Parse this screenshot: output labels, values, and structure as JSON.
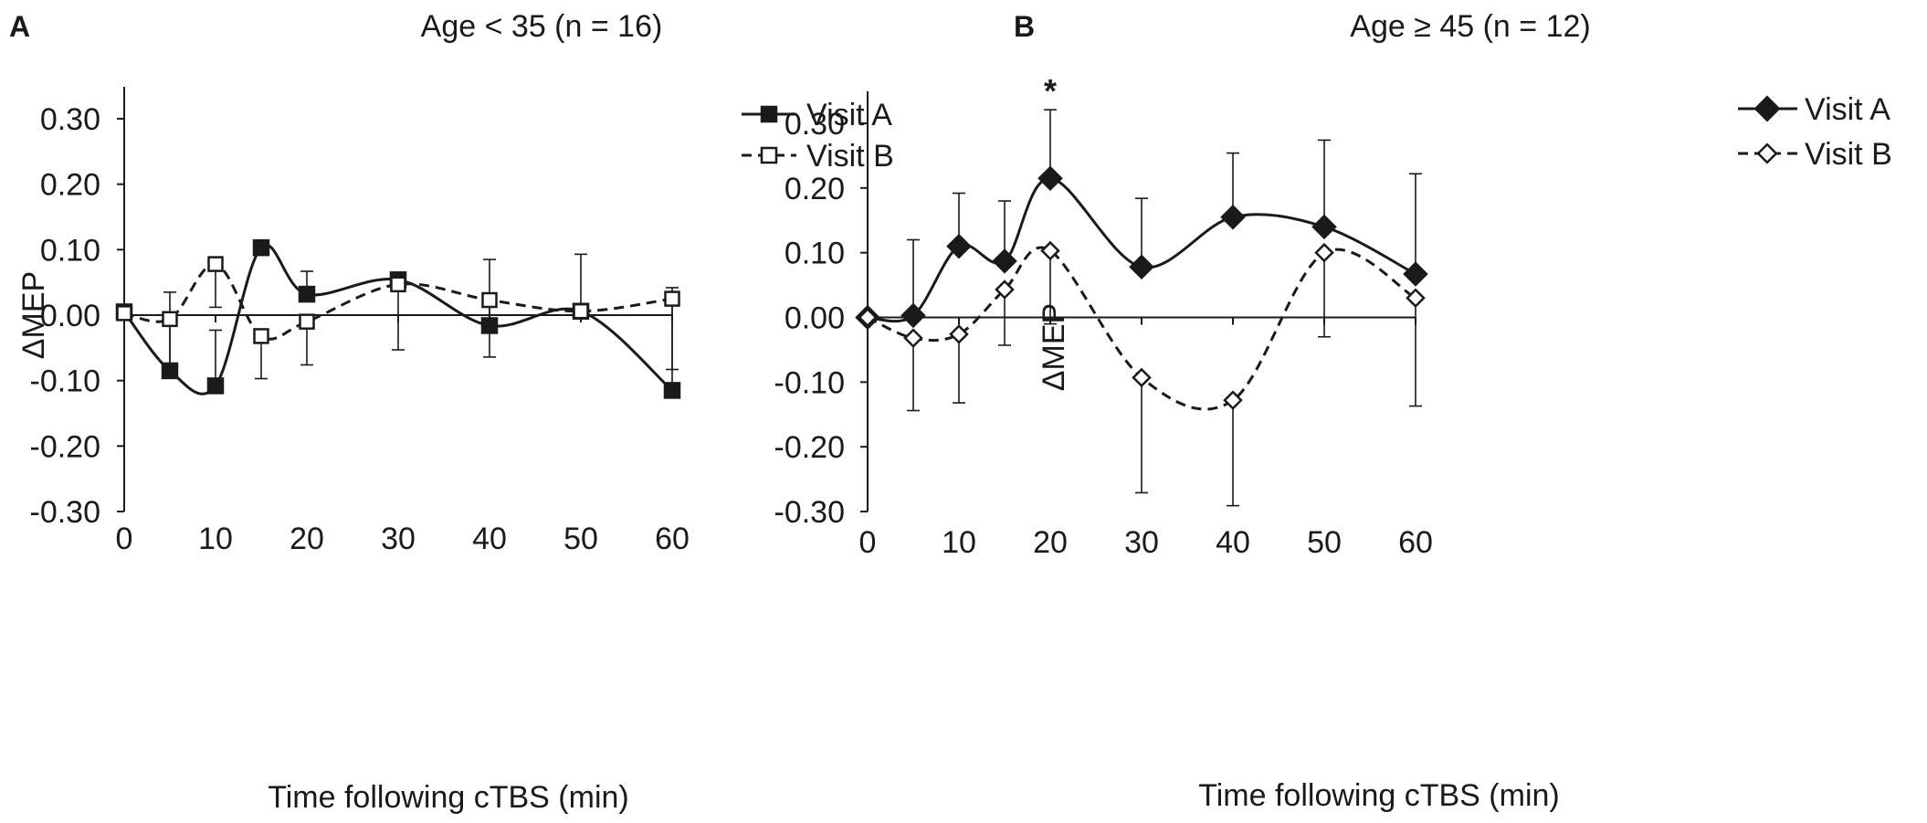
{
  "chart_data": [
    {
      "panel": "A",
      "type": "line",
      "title": "Age < 35 (n = 16)",
      "xlabel": "Time following cTBS (min)",
      "ylabel": "ΔMEP",
      "x": [
        0,
        5,
        10,
        15,
        20,
        30,
        40,
        50,
        60
      ],
      "xticks": [
        0,
        10,
        20,
        30,
        40,
        50,
        60
      ],
      "xtick_labels": [
        "0",
        "10",
        "20",
        "30",
        "40",
        "50",
        "60"
      ],
      "xlim": [
        0,
        60
      ],
      "ylim": [
        -0.3,
        0.3
      ],
      "yticks": [
        -0.3,
        -0.2,
        -0.1,
        0.0,
        0.1,
        0.2,
        0.3
      ],
      "ytick_labels": [
        "-0.30",
        "-0.20",
        "-0.10",
        "0.00",
        "0.10",
        "0.20",
        "0.30"
      ],
      "legend_position": "top-right",
      "series": [
        {
          "name": "Visit A",
          "marker": "square-filled",
          "line": "solid",
          "values": [
            0.005,
            -0.085,
            -0.108,
            0.103,
            0.032,
            0.054,
            -0.016,
            0.006,
            -0.115
          ],
          "error": [
            null,
            0.12,
            0.085,
            null,
            0.035,
            null,
            0.101,
            0.087,
            0.157
          ]
        },
        {
          "name": "Visit B",
          "marker": "square-open",
          "line": "dashed",
          "values": [
            0.003,
            -0.006,
            0.078,
            -0.032,
            -0.01,
            0.047,
            0.023,
            0.006,
            0.025
          ],
          "error": [
            null,
            0.078,
            0.066,
            0.065,
            0.066,
            0.1,
            0.087,
            null,
            0.108
          ]
        }
      ],
      "annotations": []
    },
    {
      "panel": "B",
      "type": "line",
      "title": "Age ≥ 45 (n = 12)",
      "xlabel": "Time following cTBS (min)",
      "ylabel": "ΔMEP",
      "x": [
        0,
        5,
        10,
        15,
        20,
        30,
        40,
        50,
        60
      ],
      "xticks": [
        0,
        10,
        20,
        30,
        40,
        50,
        60
      ],
      "xtick_labels": [
        "0",
        "10",
        "20",
        "30",
        "40",
        "50",
        "60"
      ],
      "xlim": [
        0,
        60
      ],
      "ylim": [
        -0.3,
        0.3
      ],
      "yticks": [
        -0.3,
        -0.2,
        -0.1,
        0.0,
        0.1,
        0.2,
        0.3
      ],
      "ytick_labels": [
        "-0.30",
        "-0.20",
        "-0.10",
        "0.00",
        "0.10",
        "0.20",
        "0.30"
      ],
      "legend_position": "top-right",
      "series": [
        {
          "name": "Visit A",
          "marker": "diamond-filled",
          "line": "solid",
          "values": [
            0.0,
            0.003,
            0.11,
            0.087,
            0.215,
            0.078,
            0.155,
            0.14,
            0.067
          ],
          "error": [
            null,
            0.117,
            0.082,
            0.093,
            0.106,
            0.106,
            0.099,
            0.134,
            0.155
          ]
        },
        {
          "name": "Visit B",
          "marker": "diamond-open",
          "line": "dashed",
          "values": [
            0.0,
            -0.032,
            -0.026,
            0.043,
            0.103,
            -0.093,
            -0.128,
            0.1,
            0.03
          ],
          "error": [
            null,
            0.112,
            0.106,
            0.086,
            0.113,
            0.178,
            0.163,
            0.13,
            0.167
          ]
        }
      ],
      "annotations": [
        {
          "text": "*",
          "x": 20,
          "series": "Visit A"
        }
      ]
    }
  ]
}
